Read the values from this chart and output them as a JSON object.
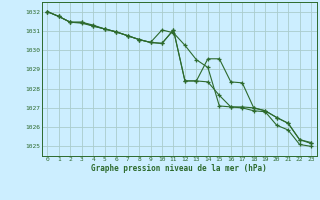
{
  "hours": [
    0,
    1,
    2,
    3,
    4,
    5,
    6,
    7,
    8,
    9,
    10,
    11,
    12,
    13,
    14,
    15,
    16,
    17,
    18,
    19,
    20,
    21,
    22,
    23
  ],
  "line1": [
    1032.0,
    1031.75,
    1031.45,
    1031.45,
    1031.3,
    1031.1,
    1030.95,
    1030.75,
    1030.55,
    1030.4,
    1031.05,
    1030.9,
    1030.25,
    1029.5,
    1029.1,
    1027.1,
    1027.05,
    1027.0,
    1026.85,
    1026.8,
    1026.1,
    1025.85,
    1025.1,
    1025.0
  ],
  "line2": [
    1032.0,
    1031.75,
    1031.45,
    1031.4,
    1031.25,
    1031.1,
    1030.95,
    1030.75,
    1030.55,
    1030.4,
    1030.35,
    1031.05,
    1028.4,
    1028.4,
    1029.55,
    1029.55,
    1028.35,
    1028.3,
    1027.0,
    1026.85,
    1026.5,
    1026.2,
    1025.35,
    1025.15
  ],
  "line3": [
    1032.0,
    1031.75,
    1031.45,
    1031.45,
    1031.25,
    1031.1,
    1030.95,
    1030.75,
    1030.55,
    1030.4,
    1030.35,
    1031.05,
    1028.4,
    1028.4,
    1028.35,
    1027.65,
    1027.05,
    1027.05,
    1027.0,
    1026.85,
    1026.5,
    1026.2,
    1025.35,
    1025.2
  ],
  "line_color": "#2d6a2d",
  "bg_color": "#cceeff",
  "grid_color": "#aacccc",
  "ylabel_vals": [
    1025,
    1026,
    1027,
    1028,
    1029,
    1030,
    1031,
    1032
  ],
  "xlabel": "Graphe pression niveau de la mer (hPa)",
  "ylim_min": 1024.5,
  "ylim_max": 1032.5,
  "xlim_min": -0.5,
  "xlim_max": 23.5
}
